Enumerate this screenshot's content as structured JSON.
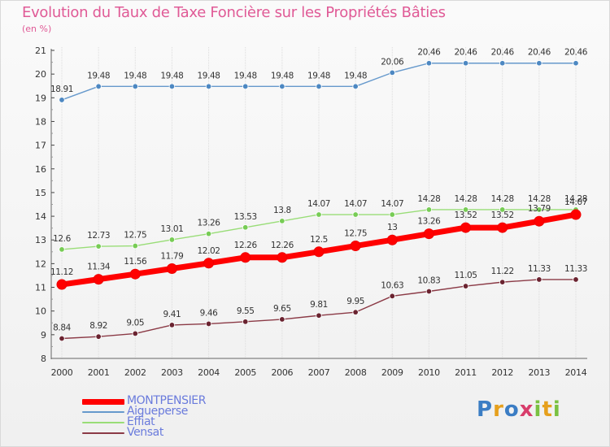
{
  "title": "Evolution du Taux de Taxe Foncière sur les Propriétés Bâties",
  "unit_label": "(en %)",
  "logo_text": "Proxiti",
  "chart_data": {
    "type": "line",
    "title": "Evolution du Taux de Taxe Foncière sur les Propriétés Bâties",
    "ylabel": "(en %)",
    "xlabel": "",
    "ylim": [
      8,
      21
    ],
    "y_ticks": [
      8,
      9,
      10,
      11,
      12,
      13,
      14,
      15,
      16,
      17,
      18,
      19,
      20,
      21
    ],
    "categories": [
      "2000",
      "2001",
      "2002",
      "2003",
      "2004",
      "2005",
      "2006",
      "2007",
      "2008",
      "2009",
      "2010",
      "2011",
      "2012",
      "2013",
      "2014"
    ],
    "series": [
      {
        "name": "Aigueperse",
        "color": "#6699cc",
        "marker": "#4d88c2",
        "values": [
          18.91,
          19.48,
          19.48,
          19.48,
          19.48,
          19.48,
          19.48,
          19.48,
          19.48,
          20.06,
          20.46,
          20.46,
          20.46,
          20.46,
          20.46
        ],
        "labels": [
          "18.91",
          "19.48",
          "19.48",
          "19.48",
          "19.48",
          "19.48",
          "19.48",
          "19.48",
          "19.48",
          "20.06",
          "20.46",
          "20.46",
          "20.46",
          "20.46",
          "20.46"
        ]
      },
      {
        "name": "Effiat",
        "color": "#99dd77",
        "marker": "#77cc55",
        "values": [
          12.6,
          12.73,
          12.75,
          13.01,
          13.26,
          13.53,
          13.8,
          14.07,
          14.07,
          14.07,
          14.28,
          14.28,
          14.28,
          14.28,
          14.28
        ],
        "labels": [
          "12.6",
          "12.73",
          "12.75",
          "13.01",
          "13.26",
          "13.53",
          "13.8",
          "14.07",
          "14.07",
          "14.07",
          "14.28",
          "14.28",
          "14.28",
          "14.28",
          "14.28"
        ]
      },
      {
        "name": "Vensat",
        "color": "#8b3a46",
        "marker": "#6a2330",
        "values": [
          8.84,
          8.92,
          9.05,
          9.41,
          9.46,
          9.55,
          9.65,
          9.81,
          9.95,
          10.63,
          10.83,
          11.05,
          11.22,
          11.33,
          11.33
        ],
        "labels": [
          "8.84",
          "8.92",
          "9.05",
          "9.41",
          "9.46",
          "9.55",
          "9.65",
          "9.81",
          "9.95",
          "10.63",
          "10.83",
          "11.05",
          "11.22",
          "11.33",
          "11.33"
        ]
      },
      {
        "name": "MONTPENSIER",
        "color": "#ff0000",
        "marker": "#ff0000",
        "values": [
          11.12,
          11.34,
          11.56,
          11.79,
          12.02,
          12.26,
          12.26,
          12.5,
          12.75,
          13,
          13.26,
          13.52,
          13.52,
          13.79,
          14.07
        ],
        "labels": [
          "11.12",
          "11.34",
          "11.56",
          "11.79",
          "12.02",
          "12.26",
          "12.26",
          "12.5",
          "12.75",
          "13",
          "13.26",
          "13.52",
          "13.52",
          "13.79",
          "14.07"
        ]
      }
    ],
    "legend": [
      "MONTPENSIER",
      "Aigueperse",
      "Effiat",
      "Vensat"
    ],
    "legend_position": "bottom-left"
  }
}
